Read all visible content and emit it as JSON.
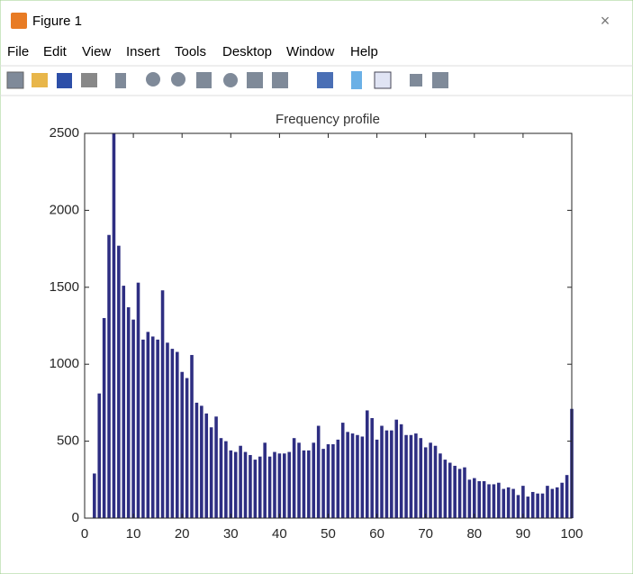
{
  "window": {
    "title": "Figure 1"
  },
  "menu": [
    "File",
    "Edit",
    "View",
    "Insert",
    "Tools",
    "Desktop",
    "Window",
    "Help"
  ],
  "chart_data": {
    "type": "bar",
    "title": "Frequency profile",
    "color": "#2e2e82",
    "x": [
      2,
      3,
      4,
      5,
      6,
      7,
      8,
      9,
      10,
      11,
      12,
      13,
      14,
      15,
      16,
      17,
      18,
      19,
      20,
      21,
      22,
      23,
      24,
      25,
      26,
      27,
      28,
      29,
      30,
      31,
      32,
      33,
      34,
      35,
      36,
      37,
      38,
      39,
      40,
      41,
      42,
      43,
      44,
      45,
      46,
      47,
      48,
      49,
      50,
      51,
      52,
      53,
      54,
      55,
      56,
      57,
      58,
      59,
      60,
      61,
      62,
      63,
      64,
      65,
      66,
      67,
      68,
      69,
      70,
      71,
      72,
      73,
      74,
      75,
      76,
      77,
      78,
      79,
      80,
      81,
      82,
      83,
      84,
      85,
      86,
      87,
      88,
      89,
      90,
      91,
      92,
      93,
      94,
      95,
      96,
      97,
      98,
      99,
      100
    ],
    "values": [
      290,
      810,
      1300,
      1840,
      2500,
      1770,
      1510,
      1370,
      1290,
      1530,
      1160,
      1210,
      1180,
      1160,
      1480,
      1140,
      1100,
      1080,
      950,
      910,
      1060,
      750,
      730,
      680,
      590,
      660,
      520,
      500,
      440,
      430,
      470,
      430,
      410,
      380,
      400,
      490,
      400,
      430,
      420,
      420,
      430,
      520,
      490,
      440,
      440,
      490,
      600,
      450,
      480,
      480,
      510,
      620,
      560,
      550,
      540,
      530,
      700,
      650,
      510,
      600,
      570,
      570,
      640,
      610,
      540,
      540,
      550,
      520,
      460,
      490,
      470,
      420,
      380,
      360,
      340,
      320,
      330,
      250,
      260,
      240,
      240,
      220,
      220,
      230,
      190,
      200,
      190,
      150,
      210,
      140,
      170,
      160,
      160,
      210,
      190,
      200,
      230,
      280,
      710
    ],
    "xlim": [
      0,
      100
    ],
    "xticks": [
      0,
      10,
      20,
      30,
      40,
      50,
      60,
      70,
      80,
      90,
      100
    ],
    "ylim": [
      0,
      2500
    ],
    "yticks": [
      0,
      500,
      1000,
      1500,
      2000,
      2500
    ]
  }
}
